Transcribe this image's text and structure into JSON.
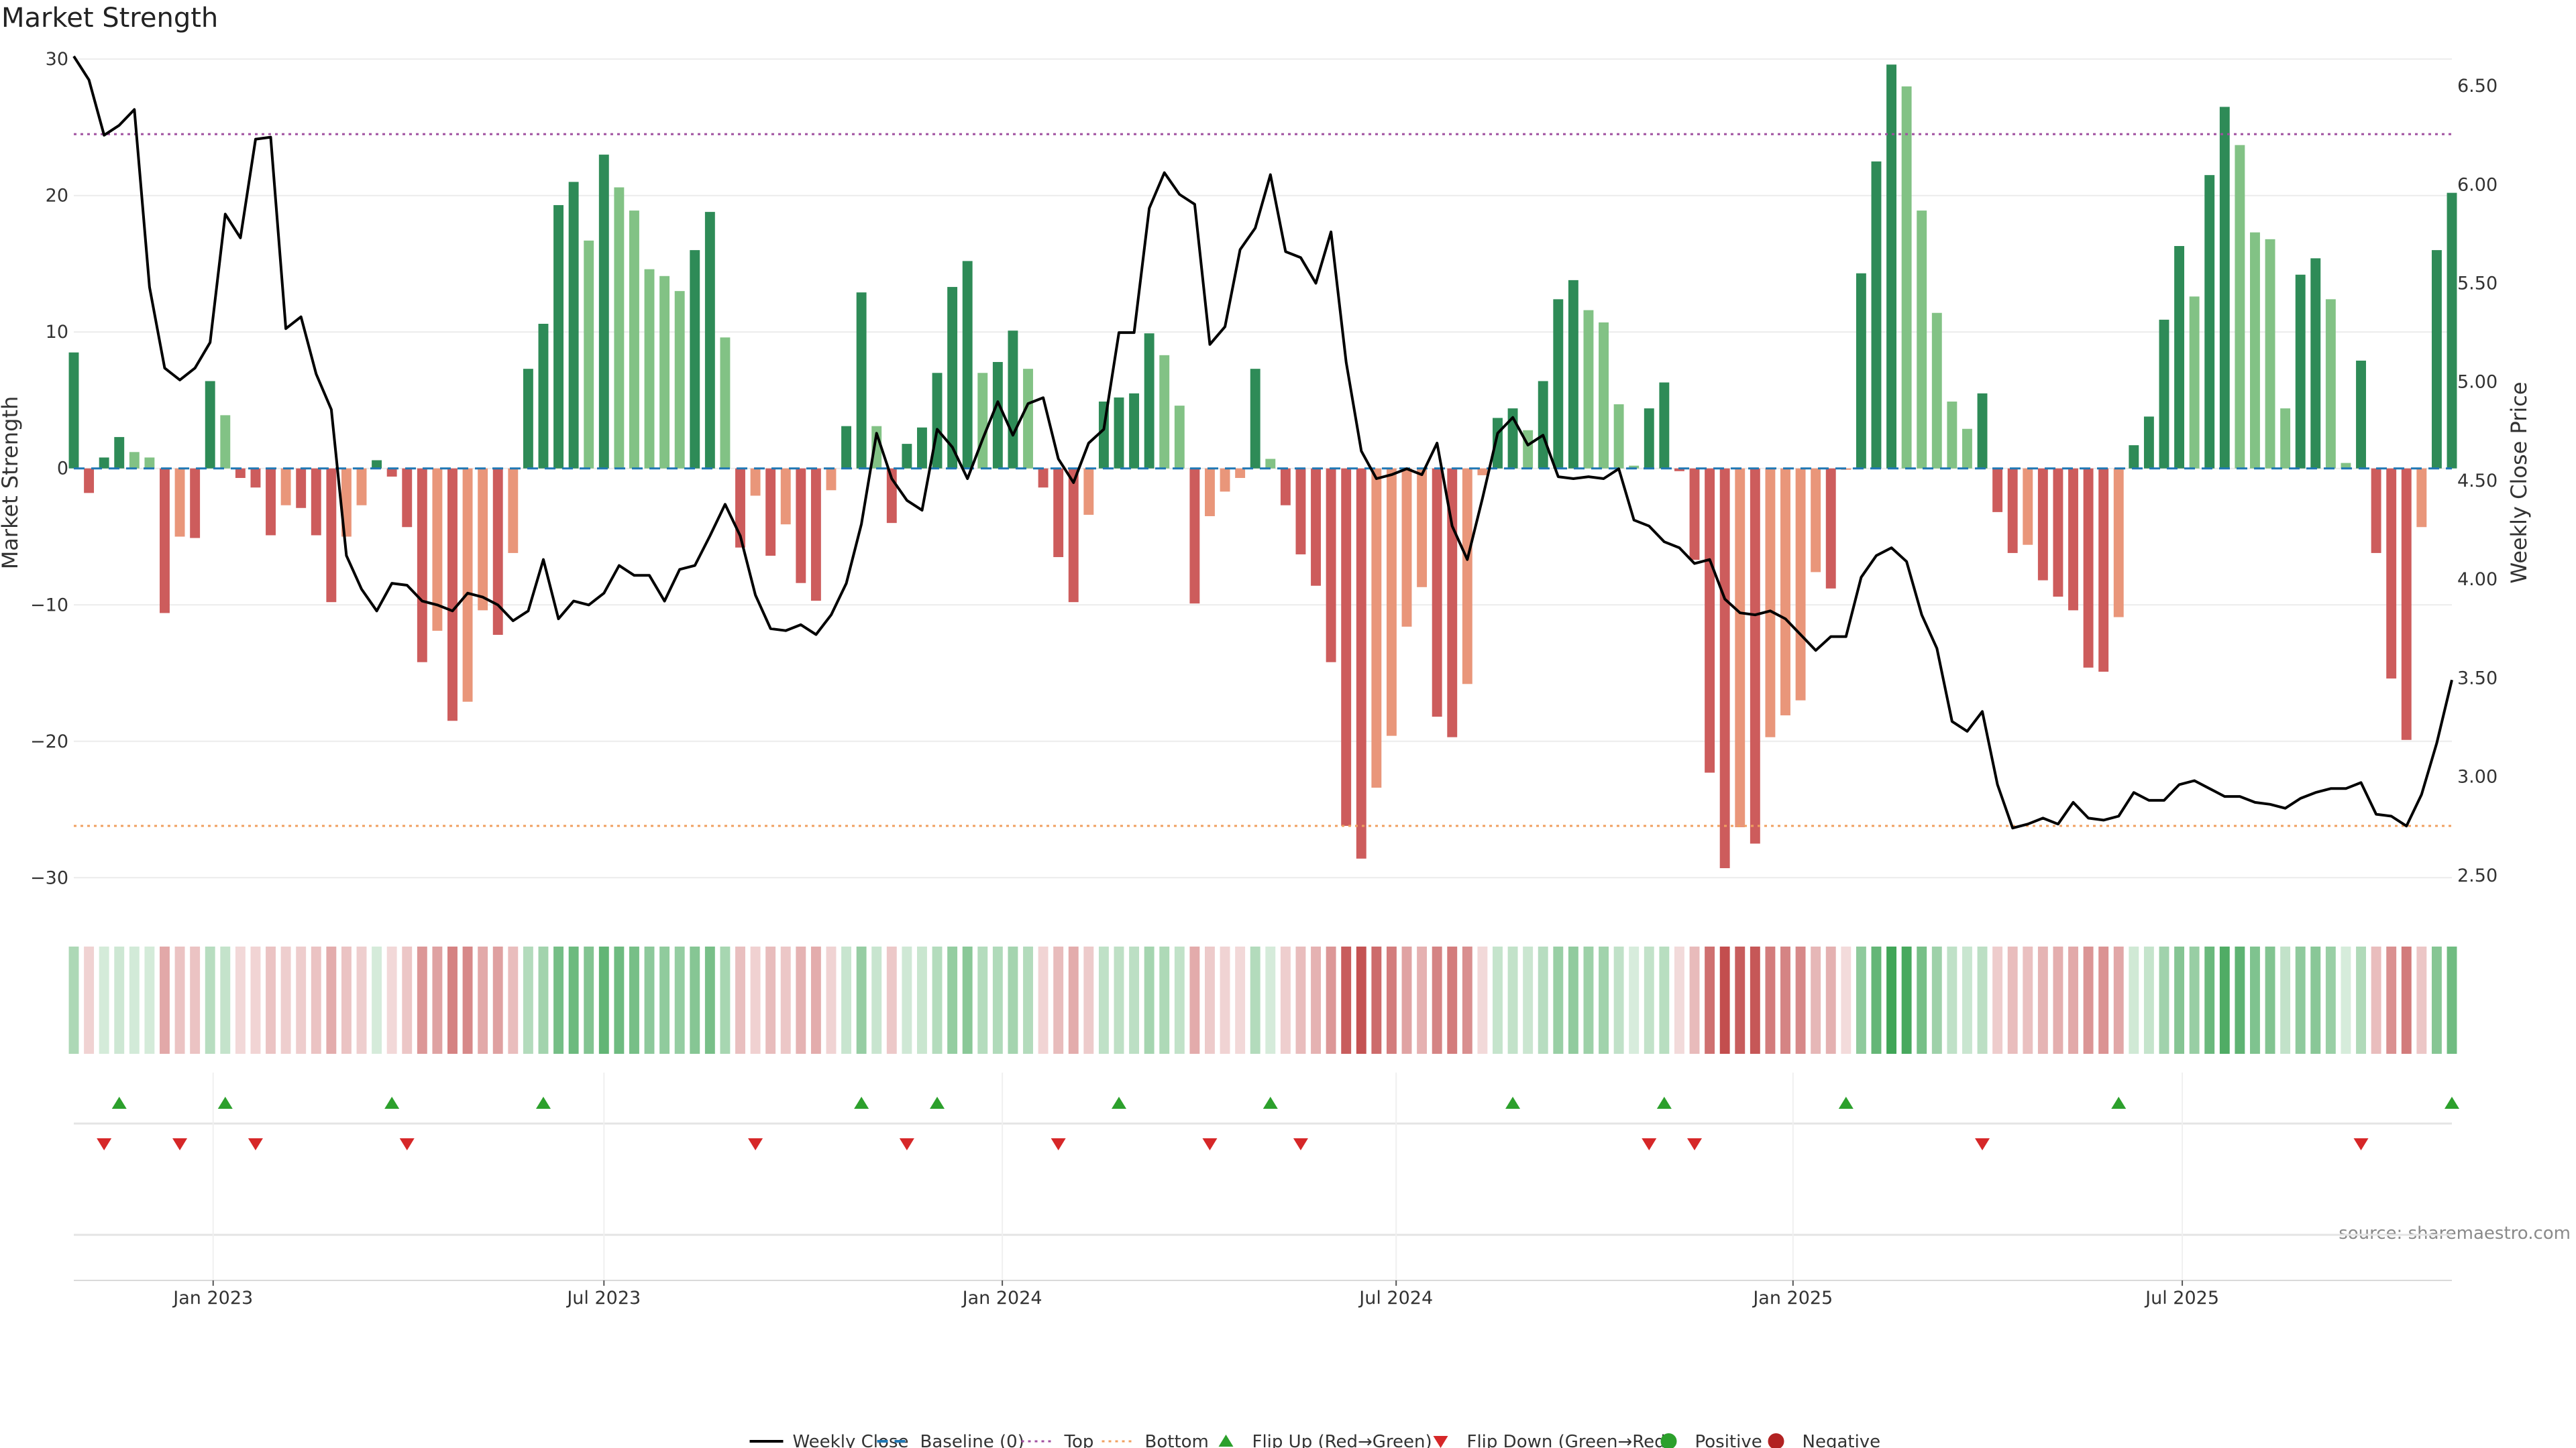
{
  "chart_data": {
    "type": "bar",
    "title": "Market Strength",
    "ylabel_left": "Market Strength",
    "ylabel_right": "Weekly Close Price",
    "ylim_left": [
      -32,
      30.5
    ],
    "ylim_right": [
      2.35,
      6.67
    ],
    "yticks_left": [
      30,
      20,
      10,
      0,
      -10,
      -20,
      -30
    ],
    "yticks_left_labels": [
      "30",
      "20",
      "10",
      "0",
      "−10",
      "−20",
      "−30"
    ],
    "yticks_right": [
      6.5,
      6.0,
      5.5,
      5.0,
      4.5,
      4.0,
      3.5,
      3.0,
      2.5
    ],
    "yticks_right_labels": [
      "6.50",
      "6.00",
      "5.50",
      "5.00",
      "4.50",
      "4.00",
      "3.50",
      "3.00",
      "2.50"
    ],
    "x_range_weeks": [
      0,
      157
    ],
    "xticks": [
      {
        "label": "Jan 2023",
        "week": 9.2
      },
      {
        "label": "Jul 2023",
        "week": 35.0
      },
      {
        "label": "Jan 2024",
        "week": 61.3
      },
      {
        "label": "Jul 2024",
        "week": 87.3
      },
      {
        "label": "Jan 2025",
        "week": 113.5
      },
      {
        "label": "Jul 2025",
        "week": 139.2
      }
    ],
    "top_line": 24.5,
    "bottom_line": -26.2,
    "baseline": 0,
    "strength": [
      8.5,
      -1.8,
      0.8,
      2.3,
      1.2,
      0.8,
      -10.6,
      -5.0,
      -5.1,
      6.4,
      3.9,
      -0.7,
      -1.4,
      -4.9,
      -2.7,
      -2.9,
      -4.9,
      -9.8,
      -5.0,
      -2.7,
      0.6,
      -0.6,
      -4.3,
      -14.2,
      -11.9,
      -18.5,
      -17.1,
      -10.4,
      -12.2,
      -6.2,
      7.3,
      10.6,
      19.3,
      21.0,
      16.7,
      23.0,
      20.6,
      18.9,
      14.6,
      14.1,
      13.0,
      16.0,
      18.8,
      9.6,
      -5.8,
      -2.0,
      -6.4,
      -4.1,
      -8.4,
      -9.7,
      -1.6,
      3.1,
      12.9,
      3.1,
      -4.0,
      1.8,
      3.0,
      7.0,
      13.3,
      15.2,
      7.0,
      7.8,
      10.1,
      7.3,
      -1.4,
      -6.5,
      -9.8,
      -3.4,
      4.9,
      5.2,
      5.5,
      9.9,
      8.3,
      4.6,
      -9.9,
      -3.5,
      -1.7,
      -0.7,
      7.3,
      0.7,
      -2.7,
      -6.3,
      -8.6,
      -14.2,
      -26.2,
      -28.6,
      -23.4,
      -19.6,
      -11.6,
      -8.7,
      -18.2,
      -19.7,
      -15.8,
      -0.5,
      3.7,
      4.4,
      2.8,
      6.4,
      12.4,
      13.8,
      11.6,
      10.7,
      4.7,
      0.2,
      4.4,
      6.3,
      -0.2,
      -6.7,
      -22.3,
      -29.3,
      -26.3,
      -27.5,
      -19.7,
      -18.1,
      -17.0,
      -7.6,
      -8.8,
      -0.1,
      14.3,
      22.5,
      29.6,
      28.0,
      18.9,
      11.4,
      4.9,
      2.9,
      5.5,
      -3.2,
      -6.2,
      -5.6,
      -8.2,
      -9.4,
      -10.4,
      -14.6,
      -14.9,
      -10.9,
      1.7,
      3.8,
      10.9,
      16.3,
      12.6,
      21.5,
      26.5,
      23.7,
      17.3,
      16.8,
      4.4,
      14.2,
      15.4,
      12.4,
      0.4,
      7.9,
      -6.2,
      -15.4,
      -19.9,
      -4.3,
      16.0,
      20.2
    ],
    "weekly_close": [
      6.65,
      6.53,
      6.25,
      6.3,
      6.38,
      5.48,
      5.07,
      5.01,
      5.07,
      5.2,
      5.85,
      5.73,
      6.23,
      6.24,
      5.27,
      5.33,
      5.04,
      4.86,
      4.12,
      3.95,
      3.84,
      3.98,
      3.97,
      3.89,
      3.87,
      3.84,
      3.93,
      3.91,
      3.87,
      3.79,
      3.84,
      4.1,
      3.8,
      3.89,
      3.87,
      3.93,
      4.07,
      4.02,
      4.02,
      3.89,
      4.05,
      4.07,
      4.22,
      4.38,
      4.22,
      3.92,
      3.75,
      3.74,
      3.77,
      3.72,
      3.82,
      3.98,
      4.28,
      4.74,
      4.51,
      4.4,
      4.35,
      4.76,
      4.67,
      4.51,
      4.71,
      4.9,
      4.73,
      4.89,
      4.92,
      4.61,
      4.49,
      4.69,
      4.76,
      5.25,
      5.25,
      5.88,
      6.06,
      5.95,
      5.9,
      5.19,
      5.28,
      5.67,
      5.78,
      6.05,
      5.66,
      5.63,
      5.5,
      5.76,
      5.1,
      4.65,
      4.51,
      4.53,
      4.56,
      4.53,
      4.69,
      4.27,
      4.1,
      4.41,
      4.74,
      4.82,
      4.68,
      4.73,
      4.52,
      4.51,
      4.52,
      4.51,
      4.56,
      4.3,
      4.27,
      4.19,
      4.16,
      4.08,
      4.1,
      3.9,
      3.83,
      3.82,
      3.84,
      3.8,
      3.72,
      3.64,
      3.71,
      3.71,
      4.01,
      4.12,
      4.16,
      4.09,
      3.82,
      3.65,
      3.28,
      3.23,
      3.33,
      2.96,
      2.74,
      2.76,
      2.79,
      2.76,
      2.87,
      2.79,
      2.78,
      2.8,
      2.92,
      2.88,
      2.88,
      2.96,
      2.98,
      2.94,
      2.9,
      2.9,
      2.87,
      2.86,
      2.84,
      2.89,
      2.92,
      2.94,
      2.94,
      2.97,
      2.81,
      2.8,
      2.75,
      2.91,
      3.17,
      3.49
    ],
    "flip_up_weeks": [
      3,
      10,
      21,
      31,
      52,
      57,
      69,
      79,
      95,
      105,
      117,
      135,
      157
    ],
    "flip_down_weeks": [
      2,
      7,
      12,
      22,
      45,
      55,
      65,
      75,
      81,
      104,
      107,
      126,
      151
    ],
    "colors": {
      "pos_strong": "#2e8b57",
      "pos_weak": "#82c285",
      "neg_strong": "#cd5c5c",
      "neg_weak": "#e9967a",
      "price_line": "#000000",
      "baseline": "#1f77b4",
      "top": "#a050a0",
      "bottom": "#f0a060",
      "flip_up": "#2ca02c",
      "flip_down": "#d62728",
      "heat_pos": "#3ea455",
      "heat_neg": "#c24b4b"
    },
    "legend": [
      {
        "label": "Weekly Close",
        "kind": "line-solid",
        "color": "#000000"
      },
      {
        "label": "Baseline (0)",
        "kind": "line-dashed",
        "color": "#1f77b4"
      },
      {
        "label": "Top",
        "kind": "line-dotted",
        "color": "#a050a0"
      },
      {
        "label": "Bottom",
        "kind": "line-dotted",
        "color": "#f0a060"
      },
      {
        "label": "Flip Up (Red→Green)",
        "kind": "triangle-up",
        "color": "#2ca02c"
      },
      {
        "label": "Flip Down (Green→Red)",
        "kind": "triangle-down",
        "color": "#d62728"
      },
      {
        "label": "Positive",
        "kind": "dot",
        "color": "#2ca02c"
      },
      {
        "label": "Negative",
        "kind": "dot",
        "color": "#b22222"
      }
    ],
    "legend_placement": "bottom-center",
    "source": "source: sharemaestro.com"
  }
}
